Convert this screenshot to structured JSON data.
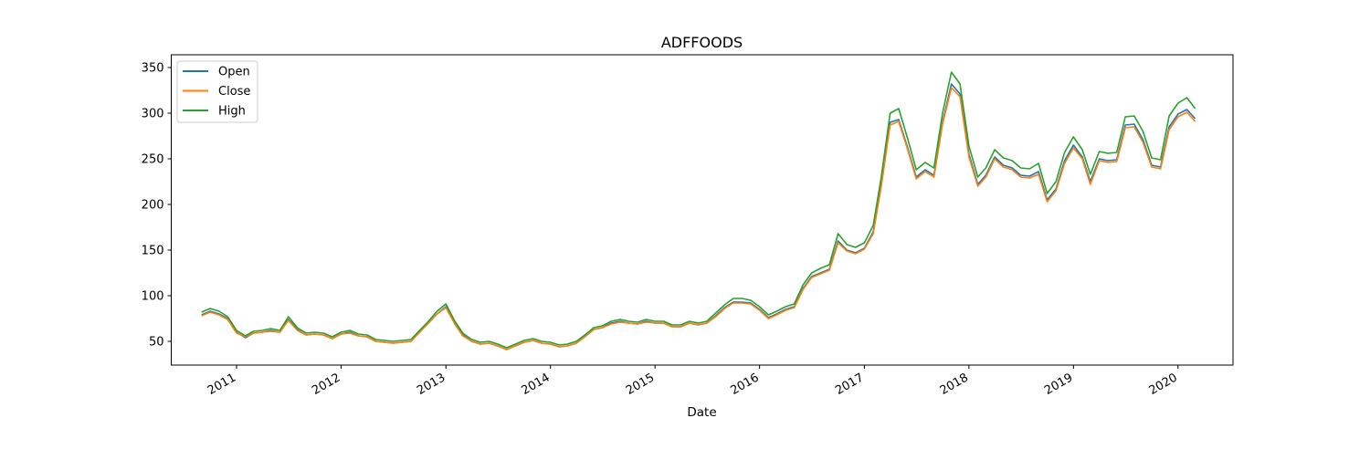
{
  "chart_data": {
    "type": "line",
    "title": "ADFFOODS",
    "xlabel": "Date",
    "ylabel": "",
    "xlim": [
      "2010-05-18",
      "2020-07-11"
    ],
    "ylim": [
      24,
      364
    ],
    "x_ticks": [
      "2011",
      "2012",
      "2013",
      "2014",
      "2015",
      "2016",
      "2017",
      "2018",
      "2019",
      "2020"
    ],
    "y_ticks": [
      50,
      100,
      150,
      200,
      250,
      300,
      350
    ],
    "grid": false,
    "legend": "top-left",
    "x": [
      "2010-09-01",
      "2010-10-01",
      "2010-11-01",
      "2010-12-01",
      "2011-01-01",
      "2011-02-01",
      "2011-03-01",
      "2011-04-01",
      "2011-05-01",
      "2011-06-01",
      "2011-07-01",
      "2011-08-01",
      "2011-09-01",
      "2011-10-01",
      "2011-11-01",
      "2011-12-01",
      "2012-01-01",
      "2012-02-01",
      "2012-03-01",
      "2012-04-01",
      "2012-05-01",
      "2012-06-01",
      "2012-07-01",
      "2012-08-01",
      "2012-09-01",
      "2012-10-01",
      "2012-11-01",
      "2012-12-01",
      "2013-01-01",
      "2013-02-01",
      "2013-03-01",
      "2013-04-01",
      "2013-05-01",
      "2013-06-01",
      "2013-07-01",
      "2013-08-01",
      "2013-09-01",
      "2013-10-01",
      "2013-11-01",
      "2013-12-01",
      "2014-01-01",
      "2014-02-01",
      "2014-03-01",
      "2014-04-01",
      "2014-05-01",
      "2014-06-01",
      "2014-07-01",
      "2014-08-01",
      "2014-09-01",
      "2014-10-01",
      "2014-11-01",
      "2014-12-01",
      "2015-01-01",
      "2015-02-01",
      "2015-03-01",
      "2015-04-01",
      "2015-05-01",
      "2015-06-01",
      "2015-07-01",
      "2015-08-01",
      "2015-09-01",
      "2015-10-01",
      "2015-11-01",
      "2015-12-01",
      "2016-01-01",
      "2016-02-01",
      "2016-03-01",
      "2016-04-01",
      "2016-05-01",
      "2016-06-01",
      "2016-07-01",
      "2016-08-01",
      "2016-09-01",
      "2016-10-01",
      "2016-11-01",
      "2016-12-01",
      "2017-01-01",
      "2017-02-01",
      "2017-03-01",
      "2017-04-01",
      "2017-05-01",
      "2017-06-01",
      "2017-07-01",
      "2017-08-01",
      "2017-09-01",
      "2017-10-01",
      "2017-11-01",
      "2017-12-01",
      "2018-01-01",
      "2018-02-01",
      "2018-03-01",
      "2018-04-01",
      "2018-05-01",
      "2018-06-01",
      "2018-07-01",
      "2018-08-01",
      "2018-09-01",
      "2018-10-01",
      "2018-11-01",
      "2018-12-01",
      "2019-01-01",
      "2019-02-01",
      "2019-03-01",
      "2019-04-01",
      "2019-05-01",
      "2019-06-01",
      "2019-07-01",
      "2019-08-01",
      "2019-09-01",
      "2019-10-01",
      "2019-11-01",
      "2019-12-01",
      "2020-01-01",
      "2020-02-01",
      "2020-03-01"
    ],
    "series": [
      {
        "name": "Open",
        "color": "#1f77b4",
        "values": [
          79,
          83,
          80,
          75,
          60,
          54,
          59,
          60,
          62,
          60,
          74,
          63,
          57,
          58,
          57,
          53,
          58,
          60,
          56,
          55,
          50,
          49,
          48,
          49,
          50,
          60,
          70,
          80,
          88,
          70,
          57,
          50,
          47,
          48,
          45,
          41,
          45,
          49,
          51,
          48,
          47,
          44,
          45,
          48,
          55,
          63,
          65,
          70,
          72,
          70,
          69,
          72,
          70,
          70,
          66,
          66,
          70,
          68,
          70,
          78,
          87,
          93,
          93,
          92,
          85,
          76,
          80,
          85,
          88,
          108,
          121,
          125,
          129,
          160,
          150,
          147,
          152,
          170,
          222,
          290,
          293,
          262,
          230,
          238,
          232,
          290,
          332,
          321,
          255,
          222,
          232,
          252,
          243,
          240,
          232,
          231,
          236,
          205,
          217,
          248,
          265,
          252,
          225,
          250,
          248,
          249,
          287,
          288,
          271,
          243,
          241,
          285,
          299,
          304,
          294
        ]
      },
      {
        "name": "Close",
        "color": "#ff7f0e",
        "values": [
          78,
          82,
          79,
          74,
          59,
          55,
          59,
          60,
          61,
          60,
          73,
          62,
          57,
          58,
          57,
          53,
          58,
          59,
          56,
          55,
          50,
          49,
          48,
          49,
          50,
          60,
          70,
          80,
          87,
          69,
          56,
          50,
          47,
          48,
          45,
          41,
          45,
          49,
          51,
          48,
          47,
          44,
          45,
          48,
          55,
          63,
          65,
          69,
          71,
          70,
          69,
          71,
          70,
          70,
          66,
          66,
          70,
          68,
          70,
          77,
          86,
          92,
          92,
          91,
          84,
          75,
          79,
          84,
          87,
          107,
          120,
          124,
          128,
          158,
          149,
          146,
          151,
          168,
          220,
          287,
          291,
          260,
          228,
          236,
          230,
          288,
          328,
          318,
          252,
          220,
          230,
          250,
          241,
          238,
          230,
          229,
          233,
          203,
          215,
          245,
          262,
          250,
          222,
          248,
          246,
          247,
          284,
          285,
          268,
          241,
          239,
          282,
          296,
          301,
          291
        ]
      },
      {
        "name": "High",
        "color": "#2ca02c",
        "values": [
          82,
          86,
          83,
          77,
          62,
          56,
          61,
          62,
          64,
          62,
          77,
          65,
          59,
          60,
          59,
          55,
          60,
          62,
          58,
          57,
          52,
          51,
          50,
          51,
          52,
          62,
          72,
          83,
          91,
          72,
          59,
          52,
          49,
          50,
          47,
          43,
          47,
          51,
          53,
          50,
          49,
          46,
          47,
          50,
          57,
          65,
          67,
          72,
          74,
          72,
          71,
          74,
          72,
          72,
          68,
          68,
          72,
          70,
          72,
          81,
          90,
          97,
          97,
          95,
          88,
          79,
          83,
          88,
          91,
          112,
          125,
          130,
          134,
          168,
          156,
          153,
          158,
          177,
          230,
          300,
          305,
          272,
          238,
          246,
          240,
          300,
          345,
          332,
          264,
          230,
          240,
          260,
          251,
          248,
          240,
          239,
          245,
          212,
          225,
          257,
          274,
          260,
          233,
          258,
          256,
          257,
          296,
          297,
          280,
          251,
          249,
          297,
          311,
          317,
          305
        ]
      }
    ]
  }
}
